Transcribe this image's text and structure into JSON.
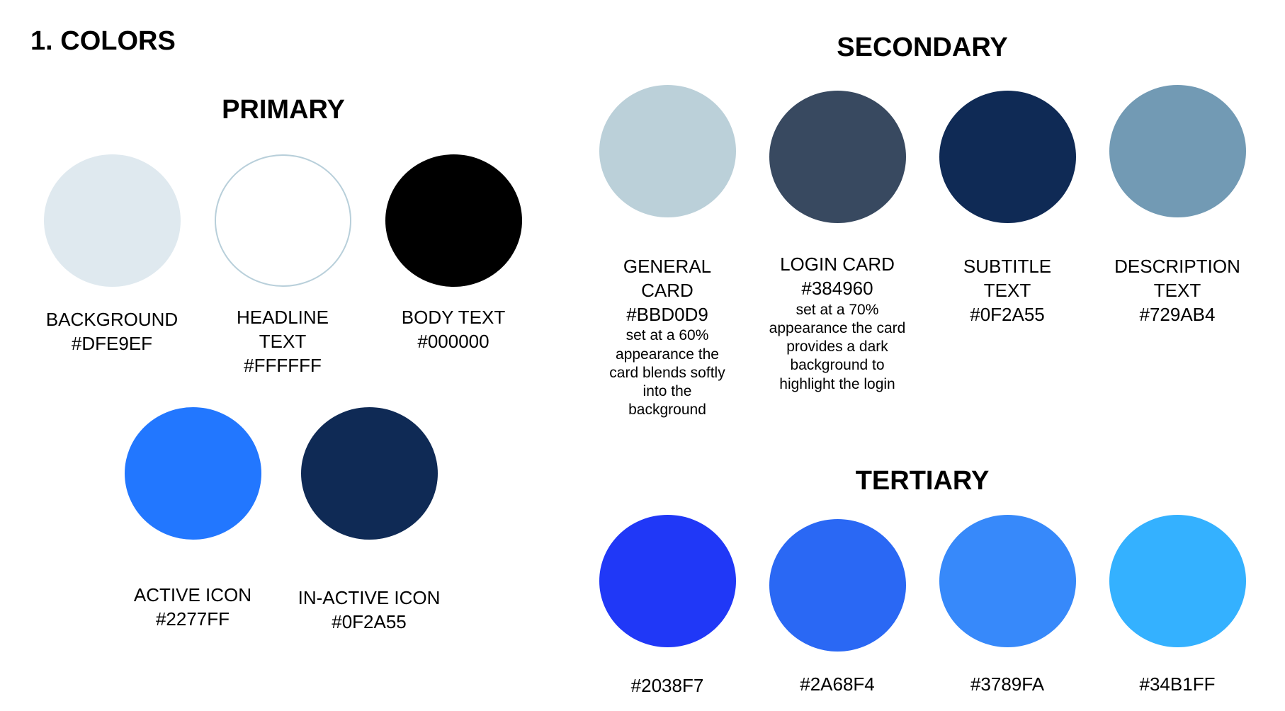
{
  "page": {
    "heading": "1. COLORS"
  },
  "primary": {
    "title": "PRIMARY",
    "swatches": [
      {
        "label": "BACKGROUND",
        "hex": "#DFE9EF",
        "color": "#DFE9EF"
      },
      {
        "label": "HEADLINE TEXT",
        "hex": "#FFFFFF",
        "color": "#FFFFFF",
        "border": "#B8CFDA"
      },
      {
        "label": "BODY TEXT",
        "hex": "#000000",
        "color": "#000000"
      },
      {
        "label": "ACTIVE ICON",
        "hex": "#2277FF",
        "color": "#2277FF"
      },
      {
        "label": "IN-ACTIVE ICON",
        "hex": "#0F2A55",
        "color": "#0F2A55"
      }
    ]
  },
  "secondary": {
    "title": "SECONDARY",
    "swatches": [
      {
        "label": "GENERAL CARD",
        "hex": "#BBD0D9",
        "color": "#BBD0D9",
        "note": "set at a 60% appearance the card blends softly into the background"
      },
      {
        "label": "LOGIN CARD",
        "hex": "#384960",
        "color": "#384960",
        "note": "set at a 70% appearance the card provides a dark background to highlight the login"
      },
      {
        "label": "SUBTITLE TEXT",
        "hex": "#0F2A55",
        "color": "#0F2A55"
      },
      {
        "label": "DESCRIPTION TEXT",
        "hex": "#729AB4",
        "color": "#729AB4"
      }
    ]
  },
  "tertiary": {
    "title": "TERTIARY",
    "swatches": [
      {
        "hex": "#2038F7",
        "color": "#2038F7"
      },
      {
        "hex": "#2A68F4",
        "color": "#2A68F4"
      },
      {
        "hex": "#3789FA",
        "color": "#3789FA"
      },
      {
        "hex": "#34B1FF",
        "color": "#34B1FF"
      }
    ]
  }
}
